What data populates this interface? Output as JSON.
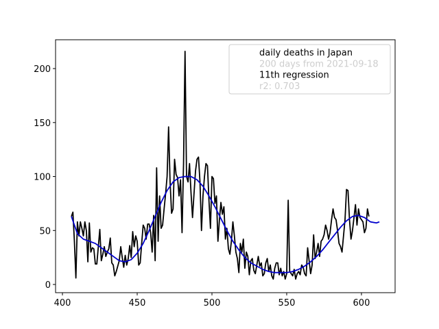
{
  "chart_data": {
    "type": "line",
    "legend": [
      "daily deaths in Japan",
      "200 days from 2021-09-18",
      "11th regression",
      "r2: 0.703"
    ],
    "legend_position": "upper right",
    "xlim": [
      395.4,
      622.5
    ],
    "ylim": [
      -7.6,
      226.7
    ],
    "xticks": [
      400,
      450,
      500,
      550,
      600
    ],
    "yticks": [
      0,
      50,
      100,
      150,
      200
    ],
    "grid": false,
    "series": [
      {
        "color": "#000000",
        "x": [
          406,
          407,
          408,
          409,
          410,
          411,
          412,
          413,
          414,
          415,
          416,
          417,
          418,
          419,
          420,
          421,
          422,
          423,
          424,
          425,
          426,
          427,
          428,
          429,
          430,
          431,
          432,
          433,
          434,
          435,
          436,
          437,
          438,
          439,
          440,
          441,
          442,
          443,
          444,
          445,
          446,
          447,
          448,
          449,
          450,
          451,
          452,
          453,
          454,
          455,
          456,
          457,
          458,
          459,
          460,
          461,
          462,
          463,
          464,
          465,
          466,
          467,
          468,
          469,
          470,
          471,
          472,
          473,
          474,
          475,
          476,
          477,
          478,
          479,
          480,
          481,
          482,
          483,
          484,
          485,
          486,
          487,
          488,
          489,
          490,
          491,
          492,
          493,
          494,
          495,
          496,
          497,
          498,
          499,
          500,
          501,
          502,
          503,
          504,
          505,
          506,
          507,
          508,
          509,
          510,
          511,
          512,
          513,
          514,
          515,
          516,
          517,
          518,
          519,
          520,
          521,
          522,
          523,
          524,
          525,
          526,
          527,
          528,
          529,
          530,
          531,
          532,
          533,
          534,
          535,
          536,
          537,
          538,
          539,
          540,
          541,
          542,
          543,
          544,
          545,
          546,
          547,
          548,
          549,
          550,
          551,
          552,
          553,
          554,
          555,
          556,
          557,
          558,
          559,
          560,
          561,
          562,
          563,
          564,
          565,
          566,
          567,
          568,
          569,
          570,
          571,
          572,
          573,
          574,
          575,
          576,
          577,
          578,
          579,
          580,
          581,
          582,
          583,
          584,
          585,
          586,
          587,
          588,
          589,
          590,
          591,
          592,
          593,
          594,
          595,
          596,
          597,
          598,
          599,
          600,
          601,
          602,
          603,
          604,
          605
        ],
        "values": [
          63,
          67,
          40,
          6,
          58,
          45,
          58,
          52,
          45,
          58,
          50,
          21,
          57,
          30,
          34,
          33,
          19,
          19,
          35,
          51,
          22,
          28,
          35,
          26,
          30,
          33,
          43,
          20,
          18,
          8,
          12,
          17,
          22,
          35,
          25,
          16,
          27,
          18,
          24,
          36,
          25,
          49,
          35,
          45,
          40,
          18,
          20,
          38,
          55,
          52,
          42,
          56,
          56,
          48,
          30,
          64,
          22,
          108,
          40,
          82,
          52,
          55,
          70,
          84,
          100,
          146,
          95,
          66,
          70,
          116,
          102,
          99,
          82,
          97,
          48,
          112,
          216,
          100,
          95,
          112,
          85,
          62,
          84,
          105,
          116,
          118,
          95,
          50,
          82,
          100,
          112,
          110,
          78,
          52,
          100,
          98,
          75,
          82,
          40,
          60,
          76,
          65,
          72,
          42,
          52,
          33,
          28,
          40,
          58,
          45,
          30,
          24,
          11,
          38,
          30,
          42,
          15,
          30,
          26,
          9,
          22,
          24,
          13,
          10,
          18,
          26,
          17,
          20,
          8,
          10,
          20,
          24,
          12,
          18,
          8,
          5,
          15,
          20,
          20,
          9,
          15,
          8,
          12,
          5,
          10,
          78,
          12,
          10,
          8,
          14,
          5,
          10,
          12,
          9,
          18,
          16,
          10,
          8,
          34,
          22,
          10,
          18,
          46,
          24,
          30,
          38,
          26,
          40,
          42,
          46,
          55,
          50,
          42,
          48,
          60,
          70,
          62,
          60,
          50,
          38,
          35,
          30,
          45,
          60,
          88,
          87,
          60,
          42,
          50,
          62,
          74,
          55,
          70,
          62,
          60,
          58,
          48,
          52,
          70,
          63
        ]
      },
      {
        "color": "#0000cc",
        "x": [
          406,
          410,
          414,
          418,
          422,
          426,
          430,
          434,
          438,
          442,
          446,
          450,
          454,
          458,
          462,
          466,
          470,
          474,
          478,
          482,
          486,
          490,
          494,
          498,
          502,
          506,
          510,
          514,
          518,
          522,
          526,
          530,
          534,
          538,
          542,
          546,
          550,
          554,
          558,
          562,
          566,
          570,
          574,
          578,
          582,
          586,
          590,
          594,
          598,
          602,
          606,
          610,
          612
        ],
        "values": [
          63,
          47,
          42,
          40,
          38,
          34,
          30,
          26,
          22,
          21,
          23,
          29,
          38,
          50,
          63,
          76,
          87,
          95,
          99,
          100,
          100,
          97,
          91,
          82,
          72,
          61,
          50,
          40,
          32,
          25,
          20,
          17,
          14,
          12,
          11,
          11,
          11,
          12,
          14,
          17,
          21,
          26,
          32,
          39,
          46,
          53,
          59,
          63,
          64,
          62,
          58,
          57,
          58
        ]
      }
    ]
  }
}
